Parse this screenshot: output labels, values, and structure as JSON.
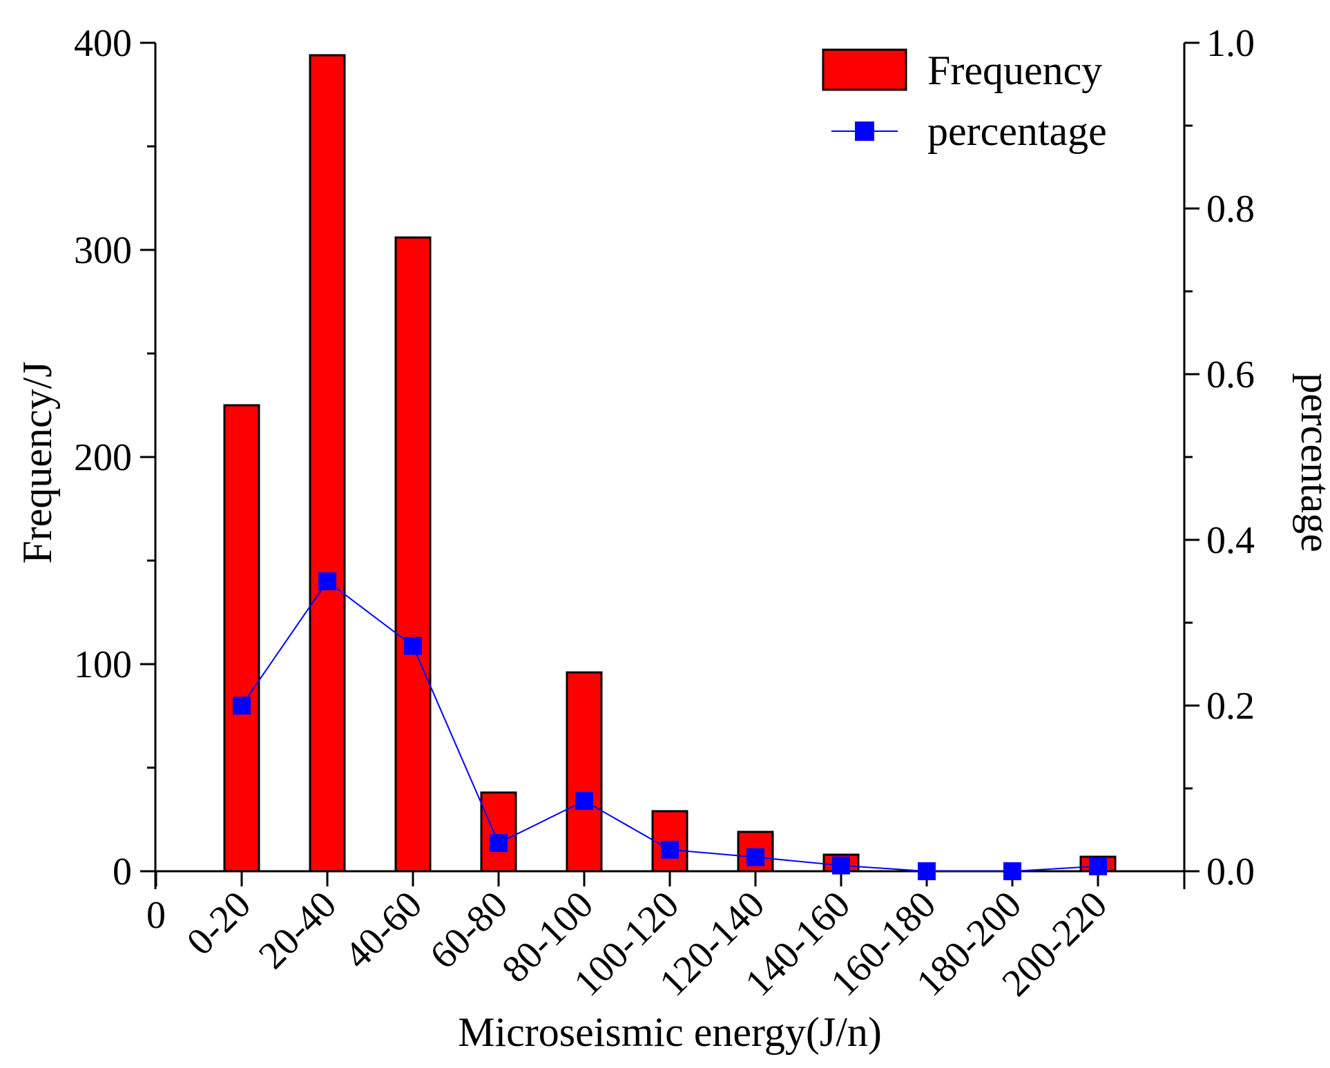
{
  "chart_data": {
    "type": "bar+line",
    "title": "",
    "xlabel": "Microseismic energy(J/n)",
    "ylabel_left": "Frequency/J",
    "ylabel_right": "percentage",
    "x_origin_label": "0",
    "categories": [
      "0-20",
      "20-40",
      "40-60",
      "60-80",
      "80-100",
      "100-120",
      "120-140",
      "140-160",
      "160-180",
      "180-200",
      "200-220"
    ],
    "ylim_left": [
      0,
      400
    ],
    "yticks_left": [
      "0",
      "100",
      "200",
      "300",
      "400"
    ],
    "ylim_right": [
      0,
      1.0
    ],
    "yticks_right": [
      "0.0",
      "0.2",
      "0.4",
      "0.6",
      "0.8",
      "1.0"
    ],
    "series": [
      {
        "name": "Frequency",
        "kind": "bar",
        "axis": "left",
        "color": "#ff0000",
        "values": [
          225,
          394,
          306,
          38,
          96,
          29,
          19,
          8,
          0,
          0,
          7
        ]
      },
      {
        "name": "percentage",
        "kind": "line",
        "axis": "right",
        "color": "#0000ff",
        "marker": "square",
        "values": [
          0.2,
          0.35,
          0.272,
          0.034,
          0.085,
          0.026,
          0.017,
          0.007,
          0.0,
          0.0,
          0.006
        ]
      }
    ],
    "legend": {
      "position": "top-right",
      "entries": [
        "Frequency",
        "percentage"
      ]
    },
    "grid": false
  }
}
